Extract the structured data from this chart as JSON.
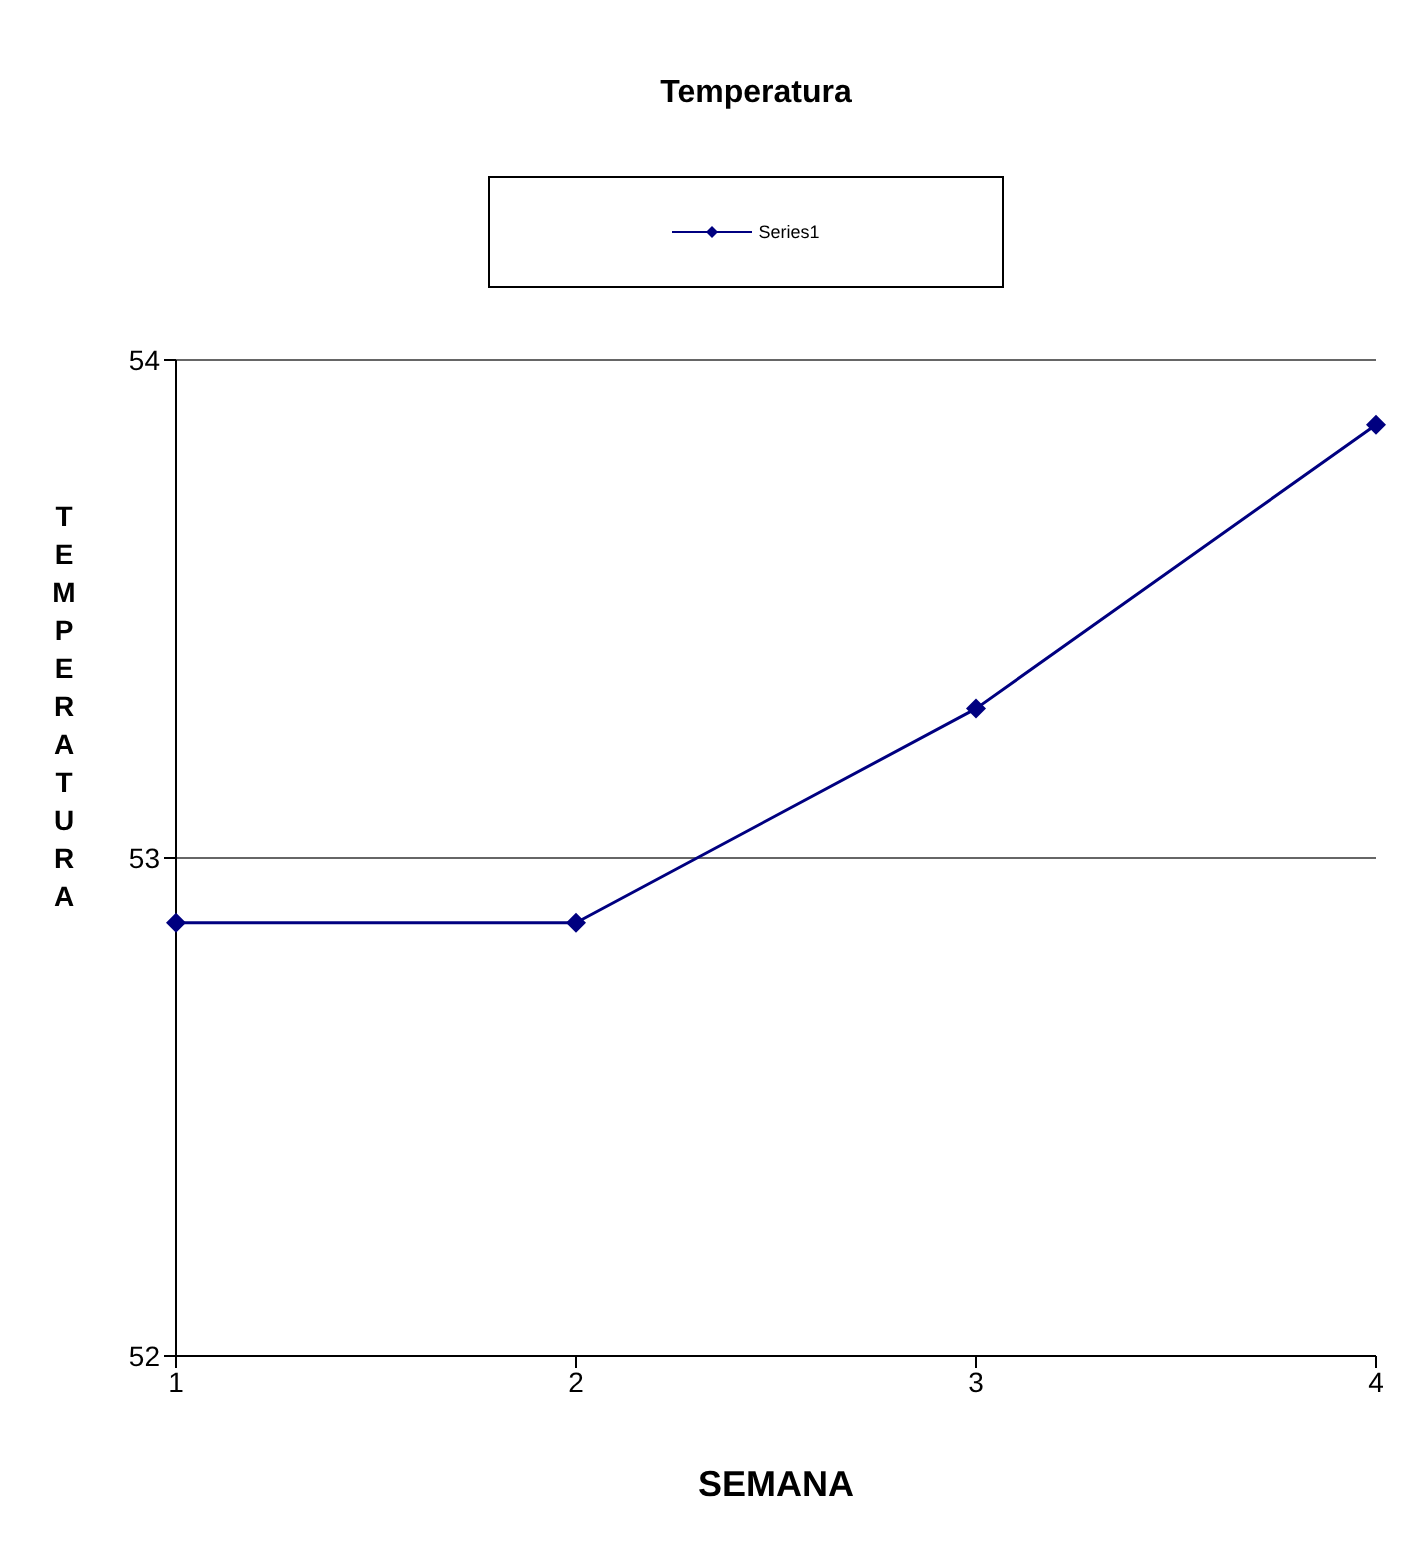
{
  "chart_data": {
    "type": "line",
    "title": "Temperatura",
    "xlabel": "SEMANA",
    "ylabel": "TEMPERATURA",
    "categories": [
      "1",
      "2",
      "3",
      "4"
    ],
    "series": [
      {
        "name": "Series1",
        "color": "#000080",
        "values": [
          52.87,
          52.87,
          53.3,
          53.87
        ]
      }
    ],
    "ylim": [
      52,
      54
    ],
    "yticks": [
      52,
      53,
      54
    ],
    "grid": "y",
    "legend": "top",
    "marker": "diamond",
    "line_style": "solid"
  }
}
